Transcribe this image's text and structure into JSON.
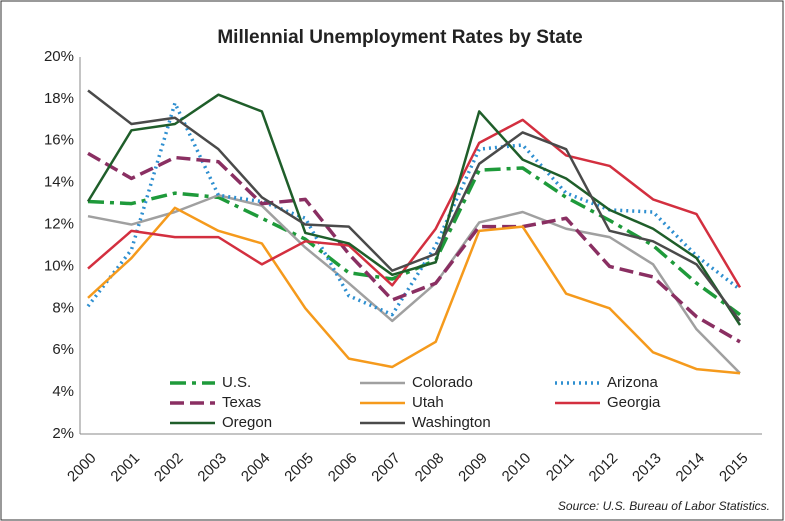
{
  "chart_data": {
    "type": "line",
    "title": "Millennial Unemployment Rates by State",
    "source": "Source: U.S. Bureau of Labor Statistics.",
    "categories": [
      "2000",
      "2001",
      "2002",
      "2003",
      "2004",
      "2005",
      "2006",
      "2007",
      "2008",
      "2009",
      "2010",
      "2011",
      "2012",
      "2013",
      "2014",
      "2015"
    ],
    "ylim": [
      2,
      20
    ],
    "yticks": [
      {
        "value": 2,
        "label": "2%"
      },
      {
        "value": 4,
        "label": "4%"
      },
      {
        "value": 6,
        "label": "6%"
      },
      {
        "value": 8,
        "label": "8%"
      },
      {
        "value": 10,
        "label": "10%"
      },
      {
        "value": 12,
        "label": "12%"
      },
      {
        "value": 14,
        "label": "14%"
      },
      {
        "value": 16,
        "label": "16%"
      },
      {
        "value": 18,
        "label": "18%"
      },
      {
        "value": 20,
        "label": "20%"
      }
    ],
    "grid": false,
    "series": [
      {
        "name": "U.S.",
        "color": "#1e9a3a",
        "dash": "dashdot",
        "values": [
          13.1,
          13.0,
          13.5,
          13.3,
          12.3,
          11.3,
          9.7,
          9.4,
          10.3,
          14.6,
          14.7,
          13.3,
          12.2,
          11.0,
          9.2,
          7.7
        ]
      },
      {
        "name": "Colorado",
        "color": "#a0a0a0",
        "dash": "solid",
        "values": [
          12.4,
          12.0,
          12.6,
          13.4,
          12.9,
          10.9,
          9.2,
          7.4,
          9.2,
          12.1,
          12.6,
          11.8,
          11.4,
          10.1,
          7.0,
          4.9
        ]
      },
      {
        "name": "Arizona",
        "color": "#2e8fd0",
        "dash": "dotted",
        "values": [
          8.1,
          10.8,
          17.8,
          13.4,
          13.1,
          12.3,
          8.6,
          7.7,
          11.0,
          15.6,
          15.8,
          13.5,
          12.7,
          12.6,
          10.5,
          8.9
        ]
      },
      {
        "name": "Texas",
        "color": "#8a2f62",
        "dash": "dashed",
        "values": [
          15.4,
          14.2,
          15.2,
          15.0,
          13.0,
          13.2,
          10.6,
          8.4,
          9.2,
          11.9,
          11.9,
          12.3,
          10.0,
          9.5,
          7.6,
          6.4
        ]
      },
      {
        "name": "Utah",
        "color": "#f59a1c",
        "dash": "solid",
        "values": [
          8.5,
          10.4,
          12.8,
          11.7,
          11.1,
          8.0,
          5.6,
          5.2,
          6.4,
          11.7,
          11.9,
          8.7,
          8.0,
          5.9,
          5.1,
          4.9
        ]
      },
      {
        "name": "Georgia",
        "color": "#d32f3f",
        "dash": "solid",
        "values": [
          9.9,
          11.7,
          11.4,
          11.4,
          10.1,
          11.2,
          11.0,
          9.1,
          11.8,
          15.9,
          17.0,
          15.3,
          14.8,
          13.2,
          12.5,
          9.0
        ]
      },
      {
        "name": "Oregon",
        "color": "#1f5e2a",
        "dash": "solid",
        "values": [
          13.1,
          16.5,
          16.8,
          18.2,
          17.4,
          11.6,
          11.1,
          9.6,
          10.2,
          17.4,
          15.1,
          14.2,
          12.7,
          11.8,
          10.4,
          7.2
        ]
      },
      {
        "name": "Washington",
        "color": "#4a4a4a",
        "dash": "solid",
        "values": [
          18.4,
          16.8,
          17.1,
          15.6,
          13.3,
          12.0,
          11.9,
          9.8,
          10.6,
          14.9,
          16.4,
          15.6,
          11.7,
          11.2,
          10.1,
          7.4
        ]
      }
    ]
  }
}
